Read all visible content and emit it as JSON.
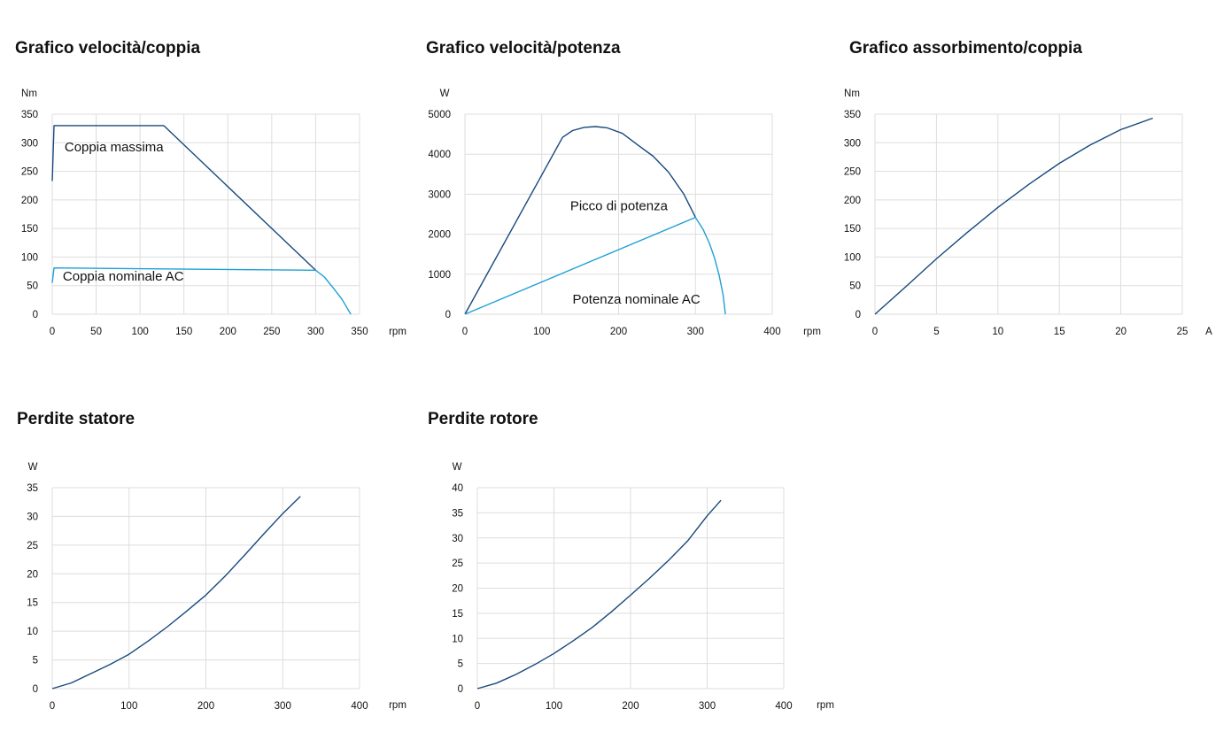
{
  "colors": {
    "dark_series": "#17497c",
    "light_series": "#1fa0d6",
    "grid": "#dddddd"
  },
  "chart_data": [
    {
      "id": "speed_torque",
      "type": "line",
      "title": "Grafico velocità/coppia",
      "ylabel": "Nm",
      "xlabel": "rpm",
      "xlim": [
        0,
        350
      ],
      "ylim": [
        0,
        350
      ],
      "xticks": [
        0,
        50,
        100,
        150,
        200,
        250,
        300,
        350
      ],
      "yticks": [
        0,
        50,
        100,
        150,
        200,
        250,
        300,
        350
      ],
      "grid": true,
      "series": [
        {
          "color": "#17497c",
          "points": [
            [
              0,
              233
            ],
            [
              2,
              330
            ],
            [
              127,
              330
            ],
            [
              300,
              77
            ]
          ]
        },
        {
          "color": "#1fa0d6",
          "points": [
            [
              0,
              55
            ],
            [
              2,
              81
            ],
            [
              300,
              77
            ],
            [
              310,
              65
            ],
            [
              320,
              46
            ],
            [
              330,
              26
            ],
            [
              340,
              0
            ]
          ]
        }
      ],
      "annotations": [
        {
          "text": "Coppia massima",
          "x": 14,
          "y": 285
        },
        {
          "text": "Coppia nominale AC",
          "x": 12,
          "y": 59
        }
      ]
    },
    {
      "id": "speed_power",
      "type": "line",
      "title": "Grafico velocità/potenza",
      "ylabel": "W",
      "xlabel": "rpm",
      "xlim": [
        0,
        400
      ],
      "ylim": [
        0,
        5000
      ],
      "xticks": [
        0,
        100,
        200,
        300,
        400
      ],
      "yticks": [
        0,
        1000,
        2000,
        3000,
        4000,
        5000
      ],
      "grid": true,
      "series": [
        {
          "color": "#17497c",
          "points": [
            [
              0,
              0
            ],
            [
              127,
              4420
            ],
            [
              140,
              4590
            ],
            [
              155,
              4670
            ],
            [
              170,
              4690
            ],
            [
              185,
              4660
            ],
            [
              205,
              4520
            ],
            [
              225,
              4230
            ],
            [
              245,
              3950
            ],
            [
              265,
              3550
            ],
            [
              285,
              3000
            ],
            [
              300,
              2420
            ]
          ]
        },
        {
          "color": "#1fa0d6",
          "points": [
            [
              0,
              0
            ],
            [
              300,
              2420
            ],
            [
              310,
              2120
            ],
            [
              318,
              1780
            ],
            [
              325,
              1400
            ],
            [
              331,
              970
            ],
            [
              336,
              480
            ],
            [
              339,
              0
            ]
          ]
        }
      ],
      "annotations": [
        {
          "text": "Picco di potenza",
          "x": 137,
          "y": 2600
        },
        {
          "text": "Potenza nominale AC",
          "x": 140,
          "y": 270
        }
      ]
    },
    {
      "id": "current_torque",
      "type": "line",
      "title": "Grafico assorbimento/coppia",
      "ylabel": "Nm",
      "xlabel": "A",
      "xlim": [
        0,
        25
      ],
      "ylim": [
        0,
        350
      ],
      "xticks": [
        0,
        5,
        10,
        15,
        20,
        25
      ],
      "yticks": [
        0,
        50,
        100,
        150,
        200,
        250,
        300,
        350
      ],
      "grid": true,
      "series": [
        {
          "color": "#17497c",
          "points": [
            [
              0,
              0
            ],
            [
              2.5,
              48
            ],
            [
              5,
              97
            ],
            [
              7.5,
              143
            ],
            [
              10,
              187
            ],
            [
              12.5,
              227
            ],
            [
              15,
              264
            ],
            [
              17.5,
              296
            ],
            [
              20,
              323
            ],
            [
              22.6,
              343
            ]
          ]
        }
      ]
    },
    {
      "id": "stator_losses",
      "type": "line",
      "title": "Perdite statore",
      "ylabel": "W",
      "xlabel": "rpm",
      "xlim": [
        0,
        400
      ],
      "ylim": [
        0,
        35
      ],
      "xticks": [
        0,
        100,
        200,
        300,
        400
      ],
      "yticks": [
        0,
        5,
        10,
        15,
        20,
        25,
        30,
        35
      ],
      "grid": true,
      "series": [
        {
          "color": "#17497c",
          "points": [
            [
              0,
              0
            ],
            [
              25,
              1
            ],
            [
              50,
              2.6
            ],
            [
              75,
              4.2
            ],
            [
              100,
              6
            ],
            [
              125,
              8.3
            ],
            [
              150,
              10.8
            ],
            [
              175,
              13.5
            ],
            [
              200,
              16.3
            ],
            [
              225,
              19.6
            ],
            [
              250,
              23.2
            ],
            [
              275,
              26.9
            ],
            [
              300,
              30.5
            ],
            [
              323,
              33.5
            ]
          ]
        }
      ]
    },
    {
      "id": "rotor_losses",
      "type": "line",
      "title": "Perdite rotore",
      "ylabel": "W",
      "xlabel": "rpm",
      "xlim": [
        0,
        400
      ],
      "ylim": [
        0,
        40
      ],
      "xticks": [
        0,
        100,
        200,
        300,
        400
      ],
      "yticks": [
        0,
        5,
        10,
        15,
        20,
        25,
        30,
        35,
        40
      ],
      "grid": true,
      "series": [
        {
          "color": "#17497c",
          "points": [
            [
              0,
              0
            ],
            [
              25,
              1.1
            ],
            [
              50,
              2.8
            ],
            [
              75,
              4.8
            ],
            [
              100,
              7
            ],
            [
              125,
              9.5
            ],
            [
              150,
              12.2
            ],
            [
              175,
              15.3
            ],
            [
              200,
              18.6
            ],
            [
              225,
              22
            ],
            [
              250,
              25.6
            ],
            [
              275,
              29.5
            ],
            [
              300,
              34.4
            ],
            [
              318,
              37.5
            ]
          ]
        }
      ]
    }
  ]
}
